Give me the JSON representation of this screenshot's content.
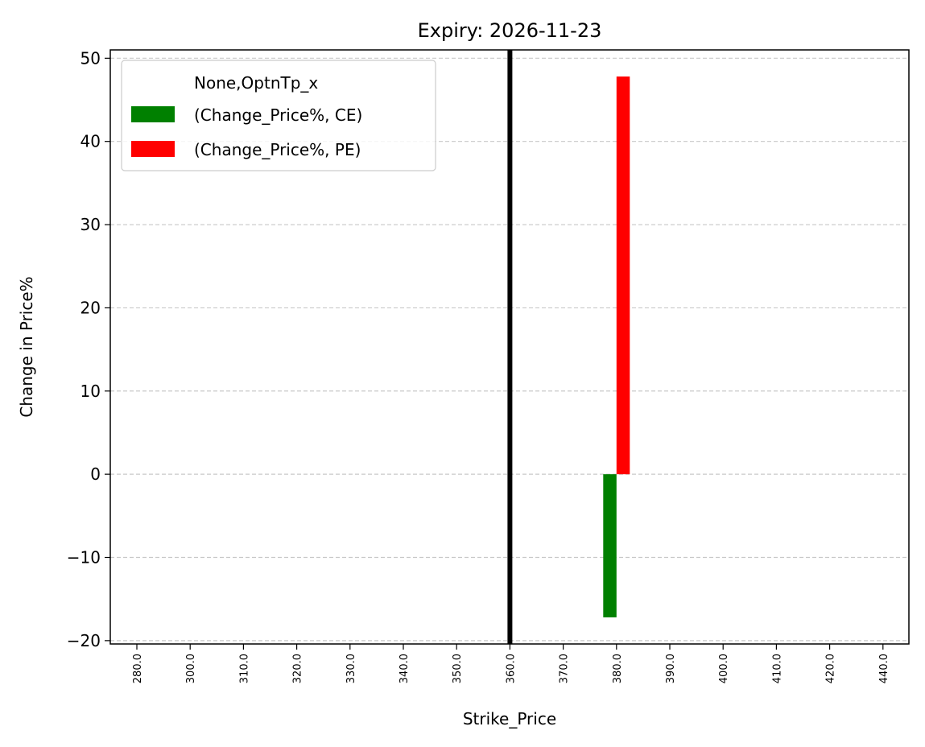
{
  "chart_data": {
    "type": "bar",
    "title": "Expiry: 2026-11-23",
    "xlabel": "Strike_Price",
    "ylabel": "Change in Price%",
    "categories": [
      "280.0",
      "300.0",
      "310.0",
      "320.0",
      "330.0",
      "340.0",
      "350.0",
      "360.0",
      "370.0",
      "380.0",
      "390.0",
      "400.0",
      "410.0",
      "420.0",
      "440.0"
    ],
    "series": [
      {
        "name": "(Change_Price%, CE)",
        "color": "#008000",
        "values": [
          null,
          null,
          null,
          null,
          null,
          null,
          null,
          null,
          null,
          -17.2,
          null,
          null,
          null,
          null,
          null
        ]
      },
      {
        "name": "(Change_Price%, PE)",
        "color": "#ff0000",
        "values": [
          null,
          null,
          null,
          null,
          null,
          null,
          null,
          null,
          null,
          47.8,
          null,
          null,
          null,
          null,
          null
        ]
      }
    ],
    "legend": {
      "title": "None,OptnTp_x",
      "position": "top-left"
    },
    "ylim": [
      -20.4,
      51
    ],
    "yticks": [
      -20,
      -10,
      0,
      10,
      20,
      30,
      40,
      50
    ],
    "ytick_labels": [
      "−20",
      "−10",
      "0",
      "10",
      "20",
      "30",
      "40",
      "50"
    ],
    "grid": "y-dashed",
    "vline": {
      "category": "360.0",
      "color": "#000000"
    }
  }
}
